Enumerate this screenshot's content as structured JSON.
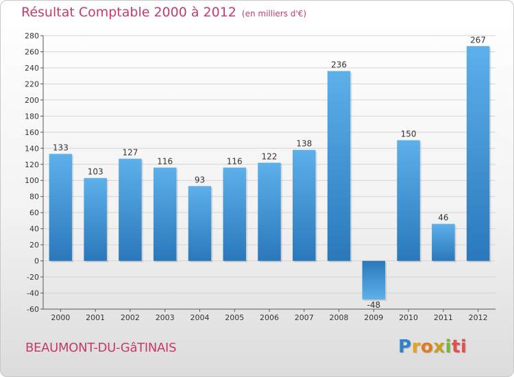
{
  "chart_data": {
    "type": "bar",
    "title": "Résultat Comptable 2000 à 2012",
    "subtitle": "(en milliers d'€)",
    "categories": [
      "2000",
      "2001",
      "2002",
      "2003",
      "2004",
      "2005",
      "2006",
      "2007",
      "2008",
      "2009",
      "2010",
      "2011",
      "2012"
    ],
    "values": [
      133,
      103,
      127,
      116,
      93,
      116,
      122,
      138,
      236,
      -48,
      150,
      46,
      267
    ],
    "ylim": [
      -60,
      280
    ],
    "yticks": [
      -60,
      -40,
      -20,
      0,
      20,
      40,
      60,
      80,
      100,
      120,
      140,
      160,
      180,
      200,
      220,
      240,
      260,
      280
    ],
    "grid": true,
    "xlabel": "",
    "ylabel": ""
  },
  "footer": {
    "place": "BEAUMONT-DU-GâTINAIS",
    "logo_letters": [
      "P",
      "r",
      "o",
      "x",
      "i",
      "t",
      "i"
    ]
  },
  "colors": {
    "title": "#c53a6b",
    "bar_light": "#5db0ea",
    "bar_dark": "#2a78bb"
  }
}
